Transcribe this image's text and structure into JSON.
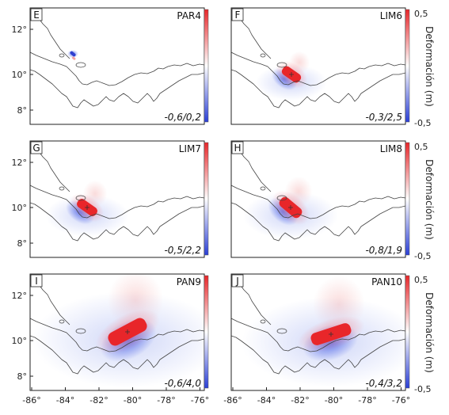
{
  "figure": {
    "y_ticks": [
      "12°",
      "10°",
      "8°"
    ],
    "x_ticks": [
      "-86°",
      "-84°",
      "-82°",
      "-80°",
      "-78°",
      "-76°"
    ],
    "colorbar": {
      "title": "Deformación (m)",
      "max_label": "0,5",
      "min_label": "-0,5",
      "colors": {
        "positive": "#e8262a",
        "neutral": "#ffffff",
        "negative": "#2a3fd6"
      }
    },
    "panels": [
      {
        "letter": "E",
        "name": "PAR4",
        "range": "-0,6/0,2"
      },
      {
        "letter": "F",
        "name": "LIM6",
        "range": "-0,3/2,5"
      },
      {
        "letter": "G",
        "name": "LIM7",
        "range": "-0,5/2,2"
      },
      {
        "letter": "H",
        "name": "LIM8",
        "range": "-0,8/1,9"
      },
      {
        "letter": "I",
        "name": "PAN9",
        "range": "-0,6/4,0"
      },
      {
        "letter": "J",
        "name": "PAN10",
        "range": "-0,4/3,2"
      }
    ]
  }
}
